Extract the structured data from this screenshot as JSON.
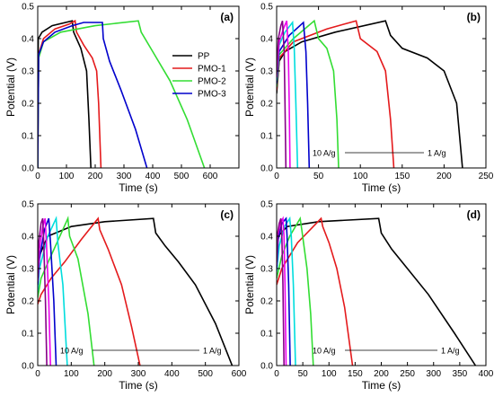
{
  "chart_data": [
    {
      "panel": "(a)",
      "type": "line",
      "xlabel": "Time (s)",
      "ylabel": "Potential (V)",
      "xlim": [
        0,
        700
      ],
      "ylim": [
        0,
        0.5
      ],
      "xticks": [
        "0",
        "100",
        "200",
        "300",
        "400",
        "500",
        "600"
      ],
      "yticks": [
        "0.0",
        "0.1",
        "0.2",
        "0.3",
        "0.4",
        "0.5"
      ],
      "legend": {
        "position": "top-right",
        "entries": [
          "PP",
          "PMO-1",
          "PMO-2",
          "PMO-3"
        ]
      },
      "series": [
        {
          "name": "PP",
          "color": "#000000",
          "points": [
            [
              0,
              0
            ],
            [
              2,
              0.4
            ],
            [
              15,
              0.42
            ],
            [
              50,
              0.44
            ],
            [
              120,
              0.455
            ],
            [
              125,
              0.42
            ],
            [
              150,
              0.37
            ],
            [
              170,
              0.3
            ],
            [
              178,
              0.15
            ],
            [
              185,
              0
            ]
          ]
        },
        {
          "name": "PMO-1",
          "color": "#e41a1c",
          "points": [
            [
              0,
              0
            ],
            [
              3,
              0.35
            ],
            [
              20,
              0.4
            ],
            [
              60,
              0.43
            ],
            [
              110,
              0.445
            ],
            [
              130,
              0.455
            ],
            [
              135,
              0.42
            ],
            [
              160,
              0.38
            ],
            [
              190,
              0.34
            ],
            [
              205,
              0.3
            ],
            [
              212,
              0.2
            ],
            [
              220,
              0
            ]
          ]
        },
        {
          "name": "PMO-2",
          "color": "#33dd33",
          "points": [
            [
              0,
              0
            ],
            [
              3,
              0.34
            ],
            [
              20,
              0.39
            ],
            [
              80,
              0.42
            ],
            [
              200,
              0.44
            ],
            [
              350,
              0.455
            ],
            [
              360,
              0.42
            ],
            [
              400,
              0.36
            ],
            [
              460,
              0.27
            ],
            [
              520,
              0.15
            ],
            [
              580,
              0
            ]
          ]
        },
        {
          "name": "PMO-3",
          "color": "#0000cc",
          "points": [
            [
              0,
              0
            ],
            [
              3,
              0.35
            ],
            [
              20,
              0.39
            ],
            [
              60,
              0.42
            ],
            [
              120,
              0.44
            ],
            [
              160,
              0.45
            ],
            [
              225,
              0.45
            ],
            [
              228,
              0.4
            ],
            [
              250,
              0.33
            ],
            [
              290,
              0.24
            ],
            [
              340,
              0.12
            ],
            [
              380,
              0
            ]
          ]
        }
      ]
    },
    {
      "panel": "(b)",
      "type": "line",
      "xlabel": "Time (s)",
      "ylabel": "Potential (V)",
      "xlim": [
        0,
        250
      ],
      "ylim": [
        0,
        0.5
      ],
      "xticks": [
        "0",
        "50",
        "100",
        "150",
        "200",
        "250"
      ],
      "yticks": [
        "0.0",
        "0.1",
        "0.2",
        "0.3",
        "0.4",
        "0.5"
      ],
      "annotation": {
        "left": "10 A/g",
        "right": "1 A/g"
      },
      "series": [
        {
          "color": "#000000",
          "points": [
            [
              0,
              0.23
            ],
            [
              3,
              0.33
            ],
            [
              10,
              0.36
            ],
            [
              30,
              0.39
            ],
            [
              70,
              0.42
            ],
            [
              130,
              0.455
            ],
            [
              136,
              0.41
            ],
            [
              150,
              0.37
            ],
            [
              180,
              0.34
            ],
            [
              200,
              0.3
            ],
            [
              215,
              0.2
            ],
            [
              222,
              0
            ]
          ]
        },
        {
          "color": "#e41a1c",
          "points": [
            [
              0,
              0.24
            ],
            [
              3,
              0.34
            ],
            [
              20,
              0.39
            ],
            [
              60,
              0.43
            ],
            [
              95,
              0.455
            ],
            [
              100,
              0.4
            ],
            [
              120,
              0.36
            ],
            [
              130,
              0.3
            ],
            [
              136,
              0.15
            ],
            [
              140,
              0
            ]
          ]
        },
        {
          "color": "#33dd33",
          "points": [
            [
              0,
              0.25
            ],
            [
              3,
              0.35
            ],
            [
              20,
              0.4
            ],
            [
              45,
              0.455
            ],
            [
              50,
              0.4
            ],
            [
              60,
              0.37
            ],
            [
              68,
              0.3
            ],
            [
              72,
              0.15
            ],
            [
              74,
              0
            ]
          ]
        },
        {
          "color": "#0000cc",
          "points": [
            [
              0,
              0.26
            ],
            [
              3,
              0.36
            ],
            [
              15,
              0.41
            ],
            [
              32,
              0.45
            ],
            [
              35,
              0.36
            ],
            [
              37,
              0.2
            ],
            [
              39,
              0
            ]
          ]
        },
        {
          "color": "#00dddd",
          "points": [
            [
              0,
              0.27
            ],
            [
              3,
              0.38
            ],
            [
              10,
              0.42
            ],
            [
              19,
              0.45
            ],
            [
              21,
              0.37
            ],
            [
              23,
              0.2
            ],
            [
              25,
              0
            ]
          ]
        },
        {
          "color": "#ee00ee",
          "points": [
            [
              0,
              0.28
            ],
            [
              3,
              0.39
            ],
            [
              8,
              0.43
            ],
            [
              12,
              0.455
            ],
            [
              14,
              0.36
            ],
            [
              15,
              0.2
            ],
            [
              16,
              0
            ]
          ]
        },
        {
          "color": "#880088",
          "points": [
            [
              0,
              0.29
            ],
            [
              2,
              0.4
            ],
            [
              5,
              0.44
            ],
            [
              7,
              0.455
            ],
            [
              9,
              0.36
            ],
            [
              10,
              0.2
            ],
            [
              11,
              0
            ]
          ]
        }
      ]
    },
    {
      "panel": "(c)",
      "type": "line",
      "xlabel": "Time (s)",
      "ylabel": "Potential (V)",
      "xlim": [
        0,
        600
      ],
      "ylim": [
        0,
        0.5
      ],
      "xticks": [
        "0",
        "100",
        "200",
        "300",
        "400",
        "500",
        "600"
      ],
      "yticks": [
        "0.0",
        "0.1",
        "0.2",
        "0.3",
        "0.4",
        "0.5"
      ],
      "annotation": {
        "left": "10 A/g",
        "right": "1 A/g"
      },
      "series": [
        {
          "color": "#000000",
          "points": [
            [
              0,
              0.28
            ],
            [
              5,
              0.34
            ],
            [
              30,
              0.4
            ],
            [
              100,
              0.43
            ],
            [
              200,
              0.445
            ],
            [
              345,
              0.455
            ],
            [
              352,
              0.41
            ],
            [
              380,
              0.37
            ],
            [
              420,
              0.32
            ],
            [
              470,
              0.25
            ],
            [
              530,
              0.13
            ],
            [
              580,
              0
            ]
          ]
        },
        {
          "color": "#e41a1c",
          "points": [
            [
              0,
              0.19
            ],
            [
              10,
              0.22
            ],
            [
              40,
              0.27
            ],
            [
              80,
              0.32
            ],
            [
              130,
              0.39
            ],
            [
              180,
              0.455
            ],
            [
              185,
              0.42
            ],
            [
              210,
              0.36
            ],
            [
              250,
              0.25
            ],
            [
              280,
              0.12
            ],
            [
              305,
              0
            ]
          ]
        },
        {
          "color": "#33dd33",
          "points": [
            [
              0,
              0.21
            ],
            [
              10,
              0.27
            ],
            [
              40,
              0.34
            ],
            [
              90,
              0.455
            ],
            [
              95,
              0.4
            ],
            [
              120,
              0.33
            ],
            [
              150,
              0.16
            ],
            [
              168,
              0
            ]
          ]
        },
        {
          "color": "#00dddd",
          "points": [
            [
              0,
              0.23
            ],
            [
              5,
              0.3
            ],
            [
              30,
              0.4
            ],
            [
              55,
              0.455
            ],
            [
              60,
              0.38
            ],
            [
              75,
              0.25
            ],
            [
              88,
              0
            ]
          ]
        },
        {
          "color": "#0000cc",
          "points": [
            [
              0,
              0.25
            ],
            [
              5,
              0.33
            ],
            [
              20,
              0.42
            ],
            [
              33,
              0.455
            ],
            [
              38,
              0.38
            ],
            [
              48,
              0.2
            ],
            [
              55,
              0
            ]
          ]
        },
        {
          "color": "#ee00ee",
          "points": [
            [
              0,
              0.26
            ],
            [
              5,
              0.36
            ],
            [
              15,
              0.43
            ],
            [
              22,
              0.455
            ],
            [
              26,
              0.38
            ],
            [
              33,
              0.2
            ],
            [
              38,
              0
            ]
          ]
        },
        {
          "color": "#880088",
          "points": [
            [
              0,
              0.27
            ],
            [
              3,
              0.38
            ],
            [
              10,
              0.44
            ],
            [
              15,
              0.455
            ],
            [
              18,
              0.38
            ],
            [
              23,
              0.2
            ],
            [
              27,
              0
            ]
          ]
        }
      ]
    },
    {
      "panel": "(d)",
      "type": "line",
      "xlabel": "Time (s)",
      "ylabel": "Potential (V)",
      "xlim": [
        0,
        400
      ],
      "ylim": [
        0,
        0.5
      ],
      "xticks": [
        "0",
        "50",
        "100",
        "150",
        "200",
        "250",
        "300",
        "350",
        "400"
      ],
      "yticks": [
        "0.0",
        "0.1",
        "0.2",
        "0.3",
        "0.4",
        "0.5"
      ],
      "annotation": {
        "left": "10 A/g",
        "right": "1 A/g"
      },
      "series": [
        {
          "color": "#000000",
          "points": [
            [
              0,
              0.36
            ],
            [
              3,
              0.4
            ],
            [
              20,
              0.43
            ],
            [
              80,
              0.445
            ],
            [
              195,
              0.455
            ],
            [
              200,
              0.41
            ],
            [
              220,
              0.36
            ],
            [
              250,
              0.3
            ],
            [
              290,
              0.22
            ],
            [
              340,
              0.1
            ],
            [
              380,
              0
            ]
          ]
        },
        {
          "color": "#e41a1c",
          "points": [
            [
              0,
              0.25
            ],
            [
              10,
              0.3
            ],
            [
              40,
              0.38
            ],
            [
              85,
              0.455
            ],
            [
              88,
              0.43
            ],
            [
              100,
              0.38
            ],
            [
              115,
              0.3
            ],
            [
              130,
              0.18
            ],
            [
              145,
              0
            ]
          ]
        },
        {
          "color": "#33dd33",
          "points": [
            [
              0,
              0.27
            ],
            [
              10,
              0.34
            ],
            [
              25,
              0.4
            ],
            [
              45,
              0.455
            ],
            [
              48,
              0.42
            ],
            [
              58,
              0.3
            ],
            [
              65,
              0.16
            ],
            [
              70,
              0
            ]
          ]
        },
        {
          "color": "#00dddd",
          "points": [
            [
              0,
              0.29
            ],
            [
              5,
              0.37
            ],
            [
              15,
              0.43
            ],
            [
              25,
              0.455
            ],
            [
              28,
              0.4
            ],
            [
              32,
              0.25
            ],
            [
              36,
              0
            ]
          ]
        },
        {
          "color": "#0000cc",
          "points": [
            [
              0,
              0.3
            ],
            [
              3,
              0.39
            ],
            [
              10,
              0.44
            ],
            [
              18,
              0.455
            ],
            [
              20,
              0.4
            ],
            [
              23,
              0.25
            ],
            [
              26,
              0
            ]
          ]
        },
        {
          "color": "#ee00ee",
          "points": [
            [
              0,
              0.31
            ],
            [
              2,
              0.4
            ],
            [
              7,
              0.44
            ],
            [
              12,
              0.455
            ],
            [
              14,
              0.4
            ],
            [
              16,
              0.25
            ],
            [
              18,
              0
            ]
          ]
        },
        {
          "color": "#880088",
          "points": [
            [
              0,
              0.32
            ],
            [
              2,
              0.41
            ],
            [
              5,
              0.44
            ],
            [
              8,
              0.455
            ],
            [
              10,
              0.4
            ],
            [
              12,
              0.25
            ],
            [
              14,
              0
            ]
          ]
        }
      ]
    }
  ]
}
